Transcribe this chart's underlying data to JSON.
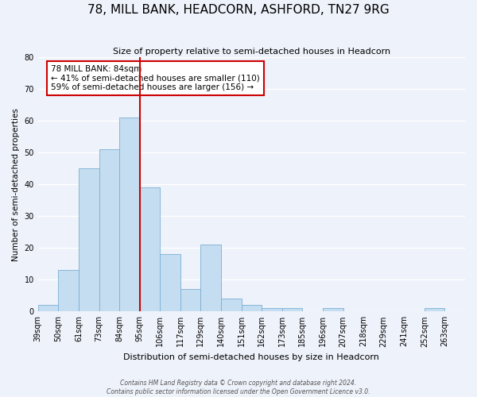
{
  "title": "78, MILL BANK, HEADCORN, ASHFORD, TN27 9RG",
  "subtitle": "Size of property relative to semi-detached houses in Headcorn",
  "xlabel": "Distribution of semi-detached houses by size in Headcorn",
  "ylabel": "Number of semi-detached properties",
  "bins": [
    "39sqm",
    "50sqm",
    "61sqm",
    "73sqm",
    "84sqm",
    "95sqm",
    "106sqm",
    "117sqm",
    "129sqm",
    "140sqm",
    "151sqm",
    "162sqm",
    "173sqm",
    "185sqm",
    "196sqm",
    "207sqm",
    "218sqm",
    "229sqm",
    "241sqm",
    "252sqm",
    "263sqm"
  ],
  "values": [
    2,
    13,
    45,
    51,
    61,
    39,
    18,
    7,
    21,
    4,
    2,
    1,
    1,
    0,
    1,
    0,
    0,
    0,
    0,
    1
  ],
  "bar_color": "#c5ddf0",
  "bar_edge_color": "#7aafd4",
  "vline_color": "#cc0000",
  "vline_bin_index": 4,
  "annotation_title": "78 MILL BANK: 84sqm",
  "annotation_line1": "← 41% of semi-detached houses are smaller (110)",
  "annotation_line2": "59% of semi-detached houses are larger (156) →",
  "annotation_box_facecolor": "#ffffff",
  "annotation_box_edgecolor": "#cc0000",
  "ylim": [
    0,
    80
  ],
  "yticks": [
    0,
    10,
    20,
    30,
    40,
    50,
    60,
    70,
    80
  ],
  "footer1": "Contains HM Land Registry data © Crown copyright and database right 2024.",
  "footer2": "Contains public sector information licensed under the Open Government Licence v3.0.",
  "background_color": "#eef2fa",
  "grid_color": "#ffffff"
}
